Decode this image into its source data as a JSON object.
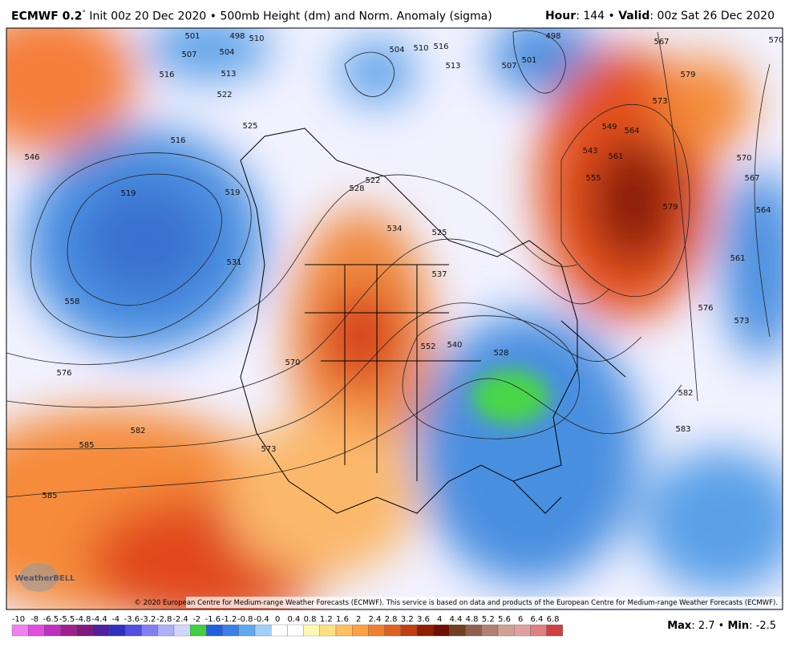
{
  "header": {
    "model": "ECMWF 0.2",
    "degree": "°",
    "init": " Init 00z 20 Dec 2020 • 500mb Height (dm) and Norm. Anomaly (sigma)",
    "hour_label": "Hour",
    "hour": ": 144 • ",
    "valid_label": "Valid",
    "valid": ": 00z Sat 26 Dec 2020"
  },
  "contour_labels": [
    "501",
    "498",
    "507",
    "504",
    "510",
    "516",
    "513",
    "522",
    "525",
    "516",
    "519",
    "519",
    "546",
    "531",
    "558",
    "576",
    "582",
    "585",
    "585",
    "504",
    "510",
    "516",
    "513",
    "507",
    "501",
    "498",
    "567",
    "570",
    "579",
    "573",
    "549",
    "564",
    "543",
    "561",
    "555",
    "579",
    "570",
    "567",
    "564",
    "561",
    "576",
    "573",
    "528",
    "522",
    "534",
    "525",
    "537",
    "540",
    "552",
    "570",
    "582",
    "583",
    "573",
    "528"
  ],
  "logo": "WeatherBELL",
  "copyright": "© 2020 European Centre for Medium-range Weather Forecasts (ECMWF). This service is based on data and products of the European Centre for Medium-range Weather Forecasts (ECMWF).",
  "colorbar": {
    "labels": [
      "-10",
      "-8",
      "-6.5",
      "-5.5",
      "-4.8",
      "-4.4",
      "-4",
      "-3.6",
      "-3.2",
      "-2.8",
      "-2.4",
      "-2",
      "-1.6",
      "-1.2",
      "-0.8",
      "-0.4",
      "0",
      "0.4",
      "0.8",
      "1.2",
      "1.6",
      "2",
      "2.4",
      "2.8",
      "3.2",
      "3.6",
      "4",
      "4.4",
      "4.8",
      "5.2",
      "5.6",
      "6",
      "6.4",
      "6.8"
    ],
    "colors": [
      "#f080f0",
      "#e050e0",
      "#c030c0",
      "#a02090",
      "#801880",
      "#5020a0",
      "#3030c0",
      "#5050e0",
      "#8080f0",
      "#b0b0f8",
      "#d0d8ff",
      "#40d040",
      "#2060e0",
      "#3a80e8",
      "#60a8f0",
      "#a0d0f8",
      "#ffffff",
      "#ffffff",
      "#fff8b0",
      "#ffe080",
      "#ffc060",
      "#ffa040",
      "#f08030",
      "#e06020",
      "#c04010",
      "#902000",
      "#701000",
      "#704020",
      "#906050",
      "#b08070",
      "#d0a090",
      "#e0a0a0",
      "#e08080",
      "#d04040"
    ]
  },
  "stats": {
    "max_label": "Max",
    "max": ": 2.7 • ",
    "min_label": "Min",
    "min": ": -2.5"
  }
}
